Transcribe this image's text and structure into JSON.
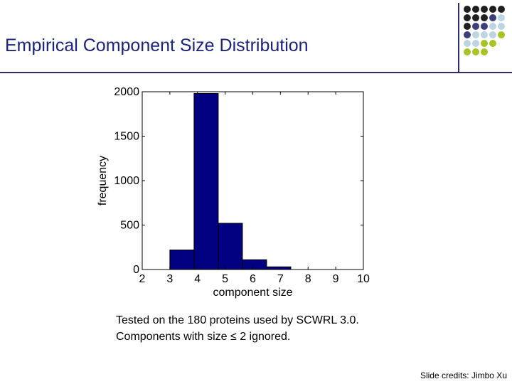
{
  "slide": {
    "title": "Empirical Component Size Distribution",
    "caption_line1": "Tested on the 180 proteins used by SCWRL 3.0.",
    "caption_line2": "Components with size ≤ 2 ignored.",
    "credits": "Slide credits: Jimbo Xu"
  },
  "decoration": {
    "dot_grid": [
      [
        "#1f1f1f",
        "#1f1f1f",
        "#1f1f1f",
        "#1f1f1f",
        "#1f1f1f"
      ],
      [
        "#1f1f1f",
        "#1f1f1f",
        "#1f1f1f",
        "#3d3f7a",
        "#bcd5e3"
      ],
      [
        "#1f1f1f",
        "#3d3f7a",
        "#3d3f7a",
        "#bcd5e3",
        "#bcd5e3"
      ],
      [
        "#3d3f7a",
        "#bcd5e3",
        "#bcd5e3",
        "#bcd5e3",
        "#a8c324"
      ],
      [
        "#bcd5e3",
        "#bcd5e3",
        "#a8c324",
        "#a8c324",
        ""
      ],
      [
        "#a8c324",
        "#a8c324",
        "#a8c324",
        "",
        ""
      ]
    ]
  },
  "chart_data": {
    "type": "bar",
    "xlabel": "component size",
    "ylabel": "frequency",
    "xlim": [
      2,
      10
    ],
    "ylim": [
      0,
      2000
    ],
    "xticks": [
      2,
      3,
      4,
      5,
      6,
      7,
      8,
      9,
      10
    ],
    "yticks": [
      0,
      500,
      1000,
      1500,
      2000
    ],
    "bin_edges": [
      3,
      3.875,
      4.75,
      5.625,
      6.5,
      7.375
    ],
    "values": [
      220,
      1980,
      520,
      110,
      30
    ],
    "bar_color": "#000080",
    "grid": false
  }
}
